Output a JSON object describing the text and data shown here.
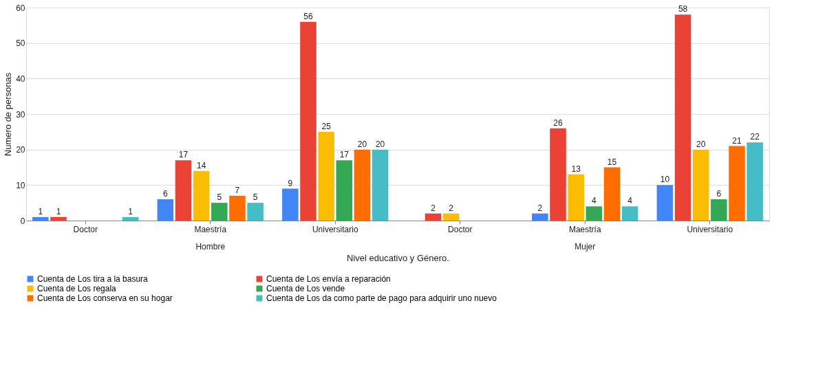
{
  "chart_data": {
    "type": "bar",
    "xlabel": "Nivel educativo y Género.",
    "ylabel": "Numero de personas",
    "categories": [
      "Doctor",
      "Maestría",
      "Universitario",
      "Doctor",
      "Maestría",
      "Universitario"
    ],
    "annotations": [
      "Hombre",
      "Mujer"
    ],
    "series": [
      {
        "name": "Cuenta de Los tira a la basura",
        "color": "#4285f4",
        "values": [
          1,
          6,
          9,
          null,
          2,
          10
        ]
      },
      {
        "name": "Cuenta de Los envía a reparación",
        "color": "#ea4335",
        "values": [
          1,
          17,
          56,
          2,
          26,
          58
        ]
      },
      {
        "name": "Cuenta de Los regala",
        "color": "#fbbc04",
        "values": [
          null,
          14,
          25,
          2,
          13,
          20
        ]
      },
      {
        "name": "Cuenta de Los vende",
        "color": "#34a853",
        "values": [
          null,
          5,
          17,
          null,
          4,
          6
        ]
      },
      {
        "name": "Cuenta de Los conserva en su hogar",
        "color": "#ff6d01",
        "values": [
          null,
          7,
          20,
          null,
          15,
          21
        ]
      },
      {
        "name": "Cuenta de Los da como parte de pago para adquirir uno nuevo",
        "color": "#46bdc6",
        "values": [
          1,
          5,
          20,
          null,
          4,
          22
        ]
      }
    ],
    "ylim": [
      0,
      60
    ],
    "yticks": [
      0,
      10,
      20,
      30,
      40,
      50,
      60
    ],
    "grid": "y",
    "legend": "bottom",
    "data_labels": true
  }
}
